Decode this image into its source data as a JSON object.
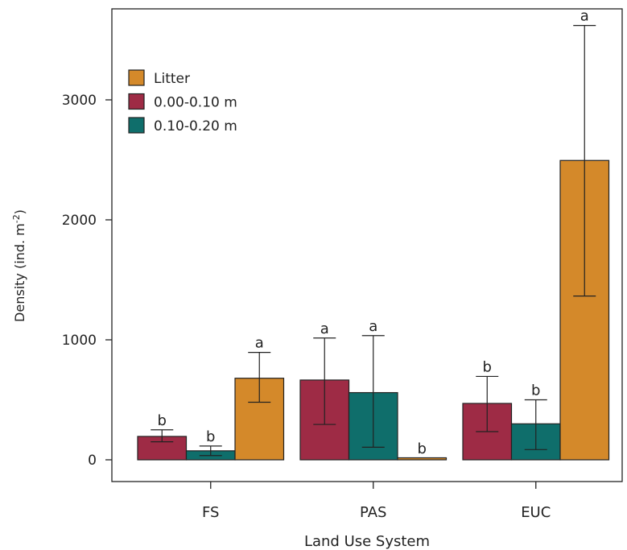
{
  "chart_data": {
    "type": "bar",
    "categories": [
      "FS",
      "PAS",
      "EUC"
    ],
    "xlabel": "Land Use System",
    "ylabel": "Density (ind. m",
    "ylabel_superscript": "-2",
    "ylabel_suffix": ")",
    "ylim": [
      -190,
      3800
    ],
    "yticks": [
      0,
      1000,
      2000,
      3000
    ],
    "grid": false,
    "legend_position": "top-left",
    "series": [
      {
        "name": "0.00-0.10 m",
        "color": "#9e2b45",
        "values": [
          195,
          665,
          470
        ],
        "err_low": [
          150,
          295,
          235
        ],
        "err_high": [
          250,
          1015,
          695
        ],
        "sig": [
          "b",
          "a",
          "b"
        ]
      },
      {
        "name": "0.10-0.20 m",
        "color": "#0f6e6b",
        "values": [
          75,
          560,
          300
        ],
        "err_low": [
          35,
          105,
          85
        ],
        "err_high": [
          115,
          1035,
          500
        ],
        "sig": [
          "b",
          "a",
          "b"
        ]
      },
      {
        "name": "Litter",
        "color": "#d4892a",
        "values": [
          680,
          15,
          2495
        ],
        "err_low": [
          480,
          15,
          1365
        ],
        "err_high": [
          895,
          15,
          3620
        ],
        "sig": [
          "a",
          "b",
          "a"
        ]
      }
    ],
    "legend_order": [
      "Litter",
      "0.00-0.10 m",
      "0.10-0.20 m"
    ]
  }
}
